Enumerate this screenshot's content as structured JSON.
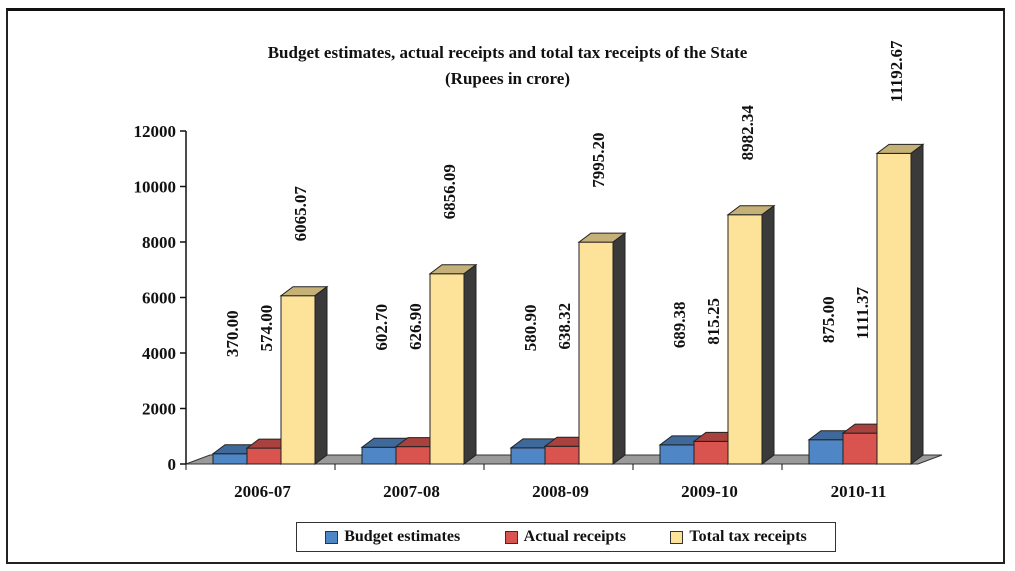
{
  "chart_data": {
    "type": "bar",
    "title": "Budget estimates, actual receipts and total tax receipts of the State",
    "subtitle": "(Rupees in crore)",
    "categories": [
      "2006-07",
      "2007-08",
      "2008-09",
      "2009-10",
      "2010-11"
    ],
    "series": [
      {
        "name": "Budget estimates",
        "color": "#4f86c6",
        "values": [
          370.0,
          602.7,
          580.9,
          689.38,
          875.0
        ],
        "labels": [
          "370.00",
          "602.70",
          "580.90",
          "689.38",
          "875.00"
        ]
      },
      {
        "name": "Actual receipts",
        "color": "#d9534f",
        "values": [
          574.0,
          626.9,
          638.32,
          815.25,
          1111.37
        ],
        "labels": [
          "574.00",
          "626.90",
          "638.32",
          "815.25",
          "1111.37"
        ]
      },
      {
        "name": "Total tax receipts",
        "color": "#fde39a",
        "values": [
          6065.07,
          6856.09,
          7995.2,
          8982.34,
          11192.67
        ],
        "labels": [
          "6065.07",
          "6856.09",
          "7995.20",
          "8982.34",
          "11192.67"
        ]
      }
    ],
    "ylim": [
      0,
      12000
    ],
    "yticks": [
      "0",
      "2000",
      "4000",
      "6000",
      "8000",
      "10000",
      "12000"
    ],
    "xlabel": "",
    "ylabel": "",
    "legend_position": "bottom",
    "style": "3d-bar"
  }
}
